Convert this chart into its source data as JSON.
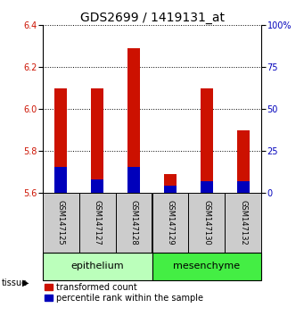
{
  "title": "GDS2699 / 1419131_at",
  "samples": [
    "GSM147125",
    "GSM147127",
    "GSM147128",
    "GSM147129",
    "GSM147130",
    "GSM147132"
  ],
  "red_values": [
    6.1,
    6.1,
    6.29,
    5.69,
    6.1,
    5.9
  ],
  "blue_values": [
    5.725,
    5.665,
    5.725,
    5.635,
    5.655,
    5.655
  ],
  "ylim_left": [
    5.6,
    6.4
  ],
  "ylim_right": [
    0,
    100
  ],
  "yticks_left": [
    5.6,
    5.8,
    6.0,
    6.2,
    6.4
  ],
  "yticks_right": [
    0,
    25,
    50,
    75,
    100
  ],
  "ytick_right_labels": [
    "0",
    "25",
    "50",
    "75",
    "100%"
  ],
  "baseline": 5.6,
  "tissue_groups": [
    {
      "label": "epithelium",
      "indices": [
        0,
        1,
        2
      ],
      "color": "#bbffbb"
    },
    {
      "label": "mesenchyme",
      "indices": [
        3,
        4,
        5
      ],
      "color": "#44ee44"
    }
  ],
  "bar_width": 0.35,
  "red_color": "#cc1100",
  "blue_color": "#0000bb",
  "left_axis_color": "#cc1100",
  "right_axis_color": "#0000bb",
  "grid_color": "#000000",
  "sample_box_color": "#cccccc",
  "tissue_arrow_label": "tissue",
  "legend_red": "transformed count",
  "legend_blue": "percentile rank within the sample",
  "title_fontsize": 10,
  "tick_fontsize": 7,
  "label_fontsize": 7,
  "sample_fontsize": 6,
  "tissue_fontsize": 8,
  "legend_fontsize": 7
}
